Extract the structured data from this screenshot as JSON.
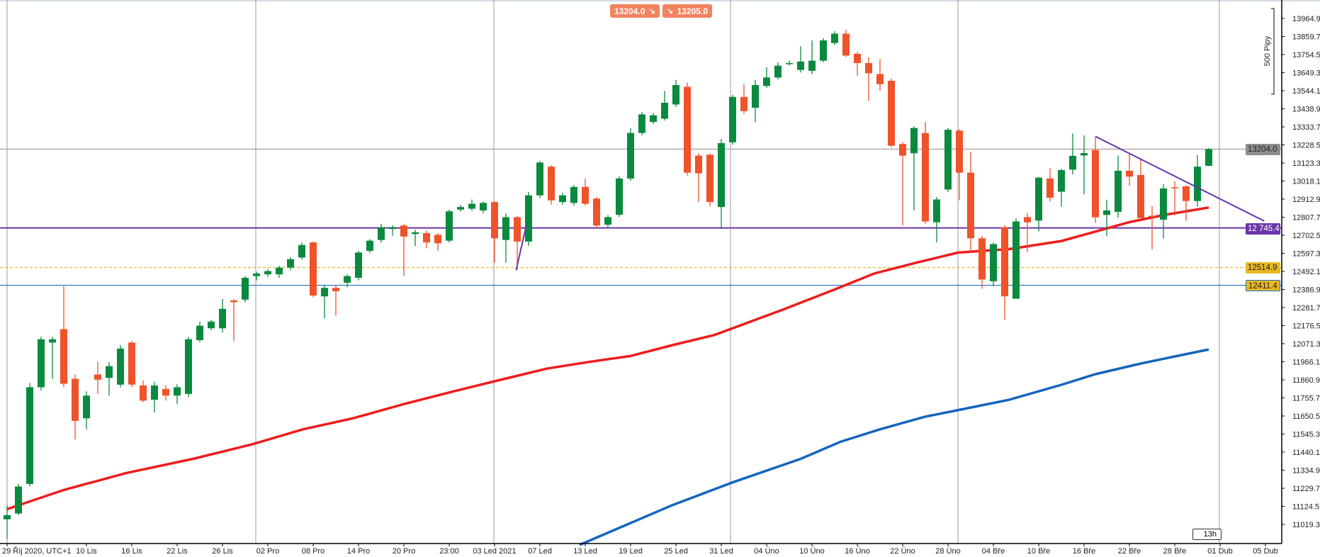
{
  "trade_buttons": {
    "sell": {
      "price": "13204.0",
      "icon": "arrow-down-right-icon"
    },
    "buy": {
      "price": "13205.0",
      "icon": "arrow-down-right-icon"
    }
  },
  "colors": {
    "up": "#0a8a3e",
    "down": "#f0522a",
    "ma_fast": "#ee1c1c",
    "ma_slow": "#1565c0",
    "trendline": "#6a35a8",
    "current_price": "#999999",
    "level_purple": "#6a35a8",
    "level_yellow": "#e8b923",
    "level_blue": "#1e6fc0"
  },
  "price_tags": {
    "current": "13204.0",
    "purple": "12 745.4",
    "yellow": "12514.9",
    "blue": "12411.4"
  },
  "ruler": {
    "label": "500 Pipy"
  },
  "timer": {
    "label": "13h"
  },
  "chart_data": {
    "type": "candlestick",
    "title": "",
    "y_ticks": [
      "13964.9",
      "13859.7",
      "13754.5",
      "13649.3",
      "13544.1",
      "13438.9",
      "13333.7",
      "13228.5",
      "13123.3",
      "13018.1",
      "12912.9",
      "12807.7",
      "12702.5",
      "12597.3",
      "12492.1",
      "12386.9",
      "12281.7",
      "12176.5",
      "12071.3",
      "11966.1",
      "11860.9",
      "11755.7",
      "11650.5",
      "11545.3",
      "11440.1",
      "11334.9",
      "11229.7",
      "11124.5",
      "11019.3"
    ],
    "x_ticks": [
      "29 Říj 2020, UTC+1",
      "10 Lis",
      "16 Lis",
      "22 Lis",
      "26 Lis",
      "02 Pro",
      "08 Pro",
      "14 Pro",
      "20 Pro",
      "23:00",
      "03 Led 2021",
      "07 Led",
      "13 Led",
      "19 Led",
      "25 Led",
      "31 Led",
      "04 Úno",
      "10 Úno",
      "16 Úno",
      "22 Úno",
      "28 Úno",
      "04 Bře",
      "10 Bře",
      "16 Bře",
      "22 Bře",
      "28 Bře",
      "01 Dub",
      "05 Dub"
    ],
    "ohlc_fields": [
      "open",
      "high",
      "low",
      "close"
    ],
    "candles": [
      [
        11049,
        11132,
        10936,
        11073
      ],
      [
        11083,
        11255,
        11073,
        11240
      ],
      [
        11255,
        11843,
        11240,
        11818
      ],
      [
        11818,
        12112,
        11800,
        12097
      ],
      [
        12078,
        12112,
        11867,
        12097
      ],
      [
        12156,
        12406,
        11818,
        11838
      ],
      [
        11867,
        11892,
        11514,
        11622
      ],
      [
        11637,
        11794,
        11573,
        11769
      ],
      [
        11892,
        11965,
        11779,
        11862
      ],
      [
        11872,
        11965,
        11769,
        11941
      ],
      [
        11833,
        12063,
        11818,
        12043
      ],
      [
        12078,
        12087,
        11818,
        11833
      ],
      [
        11828,
        11857,
        11730,
        11740
      ],
      [
        11745,
        11850,
        11671,
        11828
      ],
      [
        11808,
        11830,
        11740,
        11769
      ],
      [
        11769,
        11835,
        11720,
        11818
      ],
      [
        11779,
        12112,
        11760,
        12097
      ],
      [
        12092,
        12200,
        12080,
        12176
      ],
      [
        12161,
        12210,
        12150,
        12200
      ],
      [
        12161,
        12332,
        12136,
        12274
      ],
      [
        12323,
        12330,
        12087,
        12313
      ],
      [
        12328,
        12465,
        12313,
        12455
      ],
      [
        12465,
        12490,
        12440,
        12480
      ],
      [
        12475,
        12505,
        12460,
        12494
      ],
      [
        12475,
        12525,
        12455,
        12514
      ],
      [
        12514,
        12575,
        12500,
        12563
      ],
      [
        12573,
        12660,
        12560,
        12646
      ],
      [
        12661,
        12666,
        12342,
        12352
      ],
      [
        12347,
        12410,
        12220,
        12396
      ],
      [
        12396,
        12410,
        12235,
        12377
      ],
      [
        12426,
        12475,
        12400,
        12465
      ],
      [
        12455,
        12612,
        12440,
        12602
      ],
      [
        12612,
        12680,
        12600,
        12671
      ],
      [
        12675,
        12769,
        12660,
        12749
      ],
      [
        12739,
        12760,
        12700,
        12749
      ],
      [
        12759,
        12769,
        12465,
        12695
      ],
      [
        12710,
        12735,
        12640,
        12720
      ],
      [
        12715,
        12730,
        12627,
        12661
      ],
      [
        12705,
        12715,
        12612,
        12656
      ],
      [
        12671,
        12852,
        12660,
        12842
      ],
      [
        12852,
        12880,
        12840,
        12867
      ],
      [
        12857,
        12911,
        12845,
        12886
      ],
      [
        12847,
        12900,
        12830,
        12891
      ],
      [
        12896,
        12900,
        12543,
        12685
      ],
      [
        12675,
        12830,
        12543,
        12808
      ],
      [
        12808,
        12815,
        12505,
        12666
      ],
      [
        12666,
        12955,
        12640,
        12935
      ],
      [
        12935,
        13135,
        12920,
        13126
      ],
      [
        13102,
        13110,
        12881,
        12906
      ],
      [
        12896,
        12950,
        12880,
        12935
      ],
      [
        12891,
        12995,
        12875,
        12984
      ],
      [
        12984,
        13033,
        12875,
        12886
      ],
      [
        12916,
        12925,
        12744,
        12759
      ],
      [
        12764,
        12820,
        12744,
        12808
      ],
      [
        12822,
        13045,
        12810,
        13033
      ],
      [
        13033,
        13327,
        13020,
        13298
      ],
      [
        13298,
        13420,
        13285,
        13406
      ],
      [
        13362,
        13415,
        13350,
        13401
      ],
      [
        13381,
        13543,
        13370,
        13474
      ],
      [
        13464,
        13607,
        13450,
        13577
      ],
      [
        13567,
        13592,
        13050,
        13067
      ],
      [
        13166,
        13180,
        12896,
        13063
      ],
      [
        13171,
        13180,
        12871,
        12896
      ],
      [
        12867,
        13263,
        12739,
        13239
      ],
      [
        13244,
        13520,
        13230,
        13508
      ],
      [
        13508,
        13582,
        13410,
        13425
      ],
      [
        13445,
        13607,
        13361,
        13577
      ],
      [
        13572,
        13680,
        13560,
        13621
      ],
      [
        13621,
        13709,
        13610,
        13690
      ],
      [
        13700,
        13720,
        13690,
        13705
      ],
      [
        13665,
        13803,
        13650,
        13714
      ],
      [
        13660,
        13837,
        13640,
        13719
      ],
      [
        13719,
        13850,
        13710,
        13837
      ],
      [
        13822,
        13890,
        13810,
        13876
      ],
      [
        13876,
        13900,
        13740,
        13749
      ],
      [
        13759,
        13770,
        13631,
        13705
      ],
      [
        13705,
        13739,
        13484,
        13646
      ],
      [
        13641,
        13729,
        13543,
        13582
      ],
      [
        13602,
        13615,
        13215,
        13224
      ],
      [
        13234,
        13245,
        12759,
        13166
      ],
      [
        13180,
        13337,
        12847,
        13327
      ],
      [
        13298,
        13362,
        12770,
        12783
      ],
      [
        12778,
        12925,
        12661,
        12911
      ],
      [
        12969,
        13327,
        12955,
        13317
      ],
      [
        13312,
        13320,
        12906,
        13067
      ],
      [
        13067,
        13190,
        12602,
        12685
      ],
      [
        12685,
        12700,
        12391,
        12445
      ],
      [
        12435,
        12660,
        12406,
        12651
      ],
      [
        12749,
        12760,
        12210,
        12347
      ],
      [
        12333,
        12800,
        12333,
        12783
      ],
      [
        12808,
        12832,
        12603,
        12778
      ],
      [
        12788,
        13043,
        12725,
        13038
      ],
      [
        13033,
        13092,
        12900,
        12921
      ],
      [
        12956,
        13090,
        12869,
        13082
      ],
      [
        13085,
        13295,
        13057,
        13165
      ],
      [
        13167,
        13284,
        12940,
        13181
      ],
      [
        13199,
        13278,
        12775,
        12807
      ],
      [
        12821,
        12910,
        12697,
        12847
      ],
      [
        12839,
        13167,
        12804,
        13078
      ],
      [
        13078,
        13178,
        12990,
        13044
      ],
      [
        13053,
        13144,
        12795,
        12803
      ],
      [
        12816,
        12872,
        12619,
        12812
      ],
      [
        12793,
        13000,
        12683,
        12975
      ],
      [
        12982,
        13016,
        12818,
        12977
      ],
      [
        12987,
        12995,
        12787,
        12902
      ],
      [
        12902,
        13169,
        12869,
        13102
      ],
      [
        13107,
        13210,
        13105,
        13204
      ]
    ],
    "moving_averages": [
      {
        "color_key": "ma_fast",
        "points": [
          [
            0,
            11108
          ],
          [
            5,
            11220
          ],
          [
            10.5,
            11318
          ],
          [
            16.4,
            11401
          ],
          [
            21.6,
            11485
          ],
          [
            26.1,
            11573
          ],
          [
            30.5,
            11637
          ],
          [
            35,
            11720
          ],
          [
            39.4,
            11794
          ],
          [
            43.9,
            11867
          ],
          [
            47.6,
            11926
          ],
          [
            51.3,
            11965
          ],
          [
            55,
            12000
          ],
          [
            58.7,
            12063
          ],
          [
            62.4,
            12122
          ],
          [
            68.4,
            12269
          ],
          [
            72.8,
            12382
          ],
          [
            76.5,
            12480
          ],
          [
            80.2,
            12543
          ],
          [
            83.9,
            12602
          ],
          [
            88.4,
            12622
          ],
          [
            93,
            12669
          ],
          [
            96,
            12724
          ],
          [
            99,
            12779
          ],
          [
            102,
            12820
          ],
          [
            106,
            12864
          ]
        ]
      },
      {
        "color_key": "ma_slow",
        "points": [
          [
            50.5,
            10900
          ],
          [
            58.7,
            11132
          ],
          [
            64,
            11264
          ],
          [
            70,
            11401
          ],
          [
            73.5,
            11500
          ],
          [
            77,
            11573
          ],
          [
            81,
            11647
          ],
          [
            84,
            11686
          ],
          [
            88.4,
            11745
          ],
          [
            93,
            11832
          ],
          [
            96,
            11894
          ],
          [
            100,
            11956
          ],
          [
            103,
            11997
          ],
          [
            106,
            12038
          ]
        ]
      }
    ],
    "trendlines": [
      {
        "color_key": "trendline",
        "from": [
          96,
          13278
        ],
        "to": [
          110.9,
          12785
        ]
      },
      {
        "color_key": "trendline",
        "from": [
          44.9,
          12499
        ],
        "to": [
          45.8,
          12759
        ]
      }
    ],
    "horizontal_levels": [
      {
        "price": 13204.0,
        "color_key": "current_price",
        "style": "solid"
      },
      {
        "price": 12745.4,
        "color_key": "level_purple",
        "style": "solid"
      },
      {
        "price": 12514.9,
        "color_key": "level_yellow",
        "style": "dashed"
      },
      {
        "price": 12411.4,
        "color_key": "level_blue",
        "style": "solid"
      }
    ]
  }
}
